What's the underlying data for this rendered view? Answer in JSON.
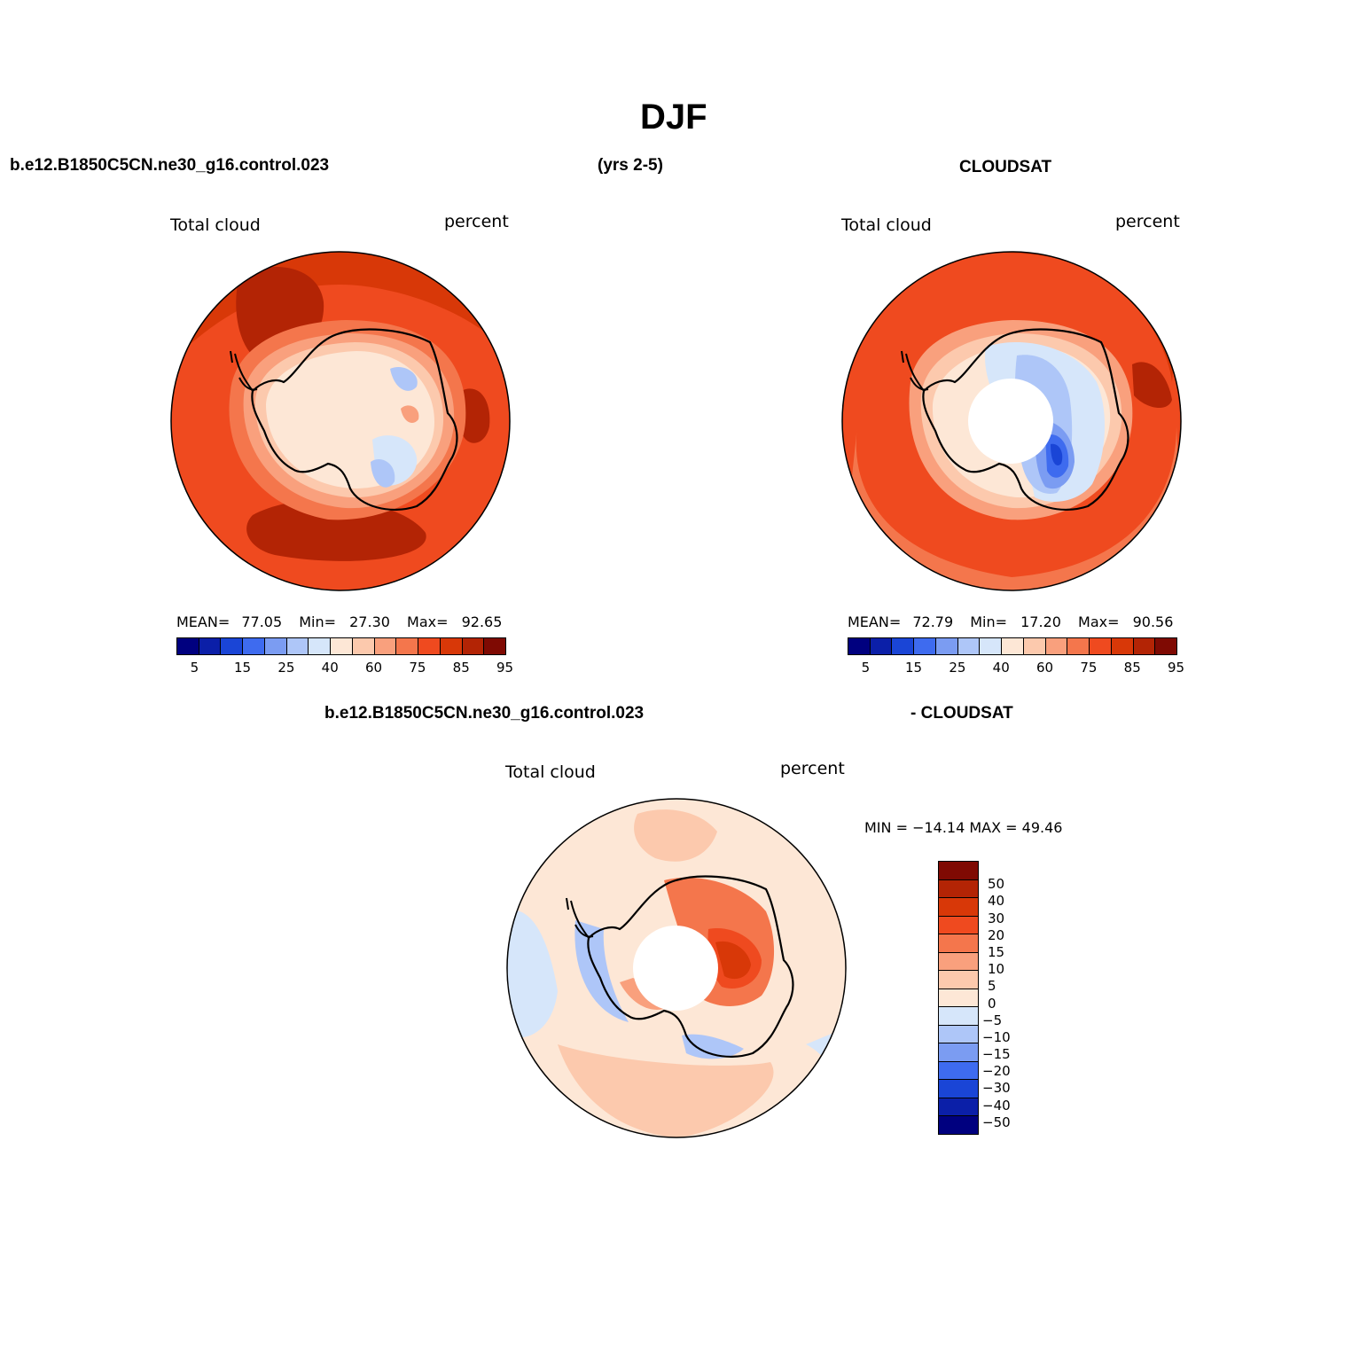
{
  "figure": {
    "title": "DJF",
    "case_name": "b.e12.B1850C5CN.ne30_g16.control.023",
    "years": "(yrs 2-5)",
    "obs_name": "CLOUDSAT",
    "diff_obs": "- CLOUDSAT"
  },
  "panels": [
    {
      "left_label": "Total cloud",
      "right_label": "percent",
      "stats": {
        "mean_label": "MEAN=",
        "mean": "77.05",
        "min_label": "Min=",
        "min": "27.30",
        "max_label": "Max=",
        "max": "92.65"
      }
    },
    {
      "left_label": "Total cloud",
      "right_label": "percent",
      "stats": {
        "mean_label": "MEAN=",
        "mean": "72.79",
        "min_label": "Min=",
        "min": "17.20",
        "max_label": "Max=",
        "max": "90.56"
      }
    },
    {
      "left_label": "Total cloud",
      "right_label": "percent",
      "minmax": "MIN = −14.14 MAX =  49.46"
    }
  ],
  "abs_colorbar": {
    "colors": [
      "#00007f",
      "#0b1fa8",
      "#1a45d6",
      "#3e6bef",
      "#7b9cf2",
      "#aec6f8",
      "#d6e6fa",
      "#fde7d6",
      "#fcc9ad",
      "#f9a07d",
      "#f4764c",
      "#ef4a1f",
      "#d83808",
      "#b32405",
      "#7f0a03"
    ],
    "ticks": [
      "5",
      "15",
      "25",
      "40",
      "60",
      "75",
      "85",
      "95"
    ]
  },
  "diff_colorbar": {
    "colors": [
      "#7f0a03",
      "#b32405",
      "#d83808",
      "#ef4a1f",
      "#f4764c",
      "#f9a07d",
      "#fcc9ad",
      "#fde7d6",
      "#d6e6fa",
      "#aec6f8",
      "#7b9cf2",
      "#3e6bef",
      "#1a45d6",
      "#0b1fa8",
      "#00007f"
    ],
    "ticks": [
      "50",
      "40",
      "30",
      "20",
      "15",
      "10",
      "5",
      "0",
      "−5",
      "−10",
      "−15",
      "−20",
      "−30",
      "−40",
      "−50"
    ]
  }
}
